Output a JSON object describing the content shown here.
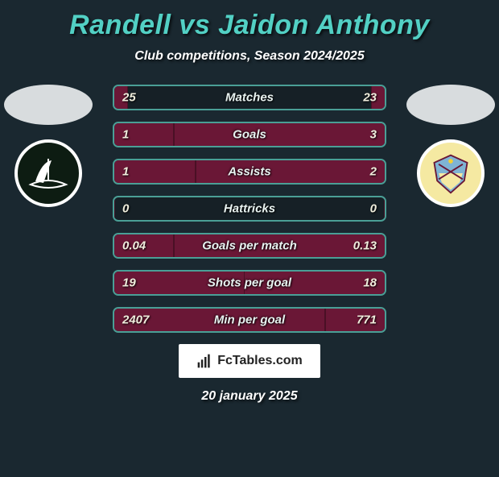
{
  "header": {
    "title": "Randell vs Jaidon Anthony",
    "subtitle": "Club competitions, Season 2024/2025",
    "title_color": "#52d0c4",
    "title_fontsize": 34
  },
  "players": {
    "left": {
      "name": "Randell",
      "team": "Plymouth",
      "crest_bg": "#0d1c12",
      "crest_fg": "#ffffff"
    },
    "right": {
      "name": "Jaidon Anthony",
      "team": "Burnley",
      "crest_bg": "#f5e9a2",
      "crest_fg": "#6a1736"
    }
  },
  "chart": {
    "type": "comparison-bars",
    "background_color": "#1a2830",
    "bar_border_color": "#4a9f96",
    "bar_fill_color": "#6a1736",
    "label_color": "#e8f2f0",
    "value_color": "#f0eedd",
    "label_fontsize": 15,
    "rows": [
      {
        "label": "Matches",
        "left": "25",
        "right": "23",
        "left_pct": 5,
        "right_pct": 5
      },
      {
        "label": "Goals",
        "left": "1",
        "right": "3",
        "left_pct": 22,
        "right_pct": 78
      },
      {
        "label": "Assists",
        "left": "1",
        "right": "2",
        "left_pct": 30,
        "right_pct": 70
      },
      {
        "label": "Hattricks",
        "left": "0",
        "right": "0",
        "left_pct": 0,
        "right_pct": 0
      },
      {
        "label": "Goals per match",
        "left": "0.04",
        "right": "0.13",
        "left_pct": 22,
        "right_pct": 78
      },
      {
        "label": "Shots per goal",
        "left": "19",
        "right": "18",
        "left_pct": 50,
        "right_pct": 52
      },
      {
        "label": "Min per goal",
        "left": "2407",
        "right": "771",
        "left_pct": 78,
        "right_pct": 22
      }
    ]
  },
  "footer": {
    "logo_text": "FcTables.com",
    "date": "20 january 2025"
  }
}
